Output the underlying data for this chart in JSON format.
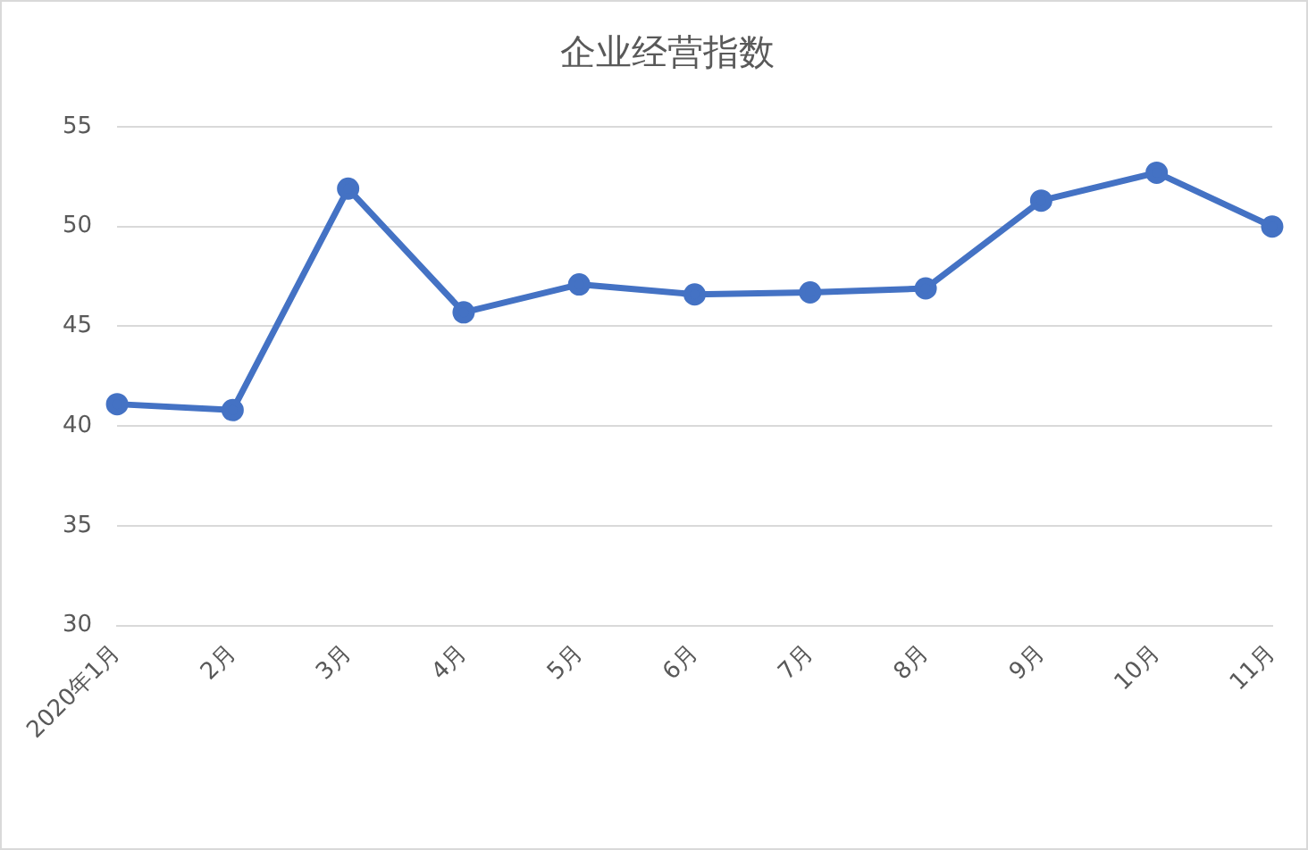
{
  "chart_data": {
    "type": "line",
    "title": "企业经营指数",
    "categories": [
      "2020年1月",
      "2月",
      "3月",
      "4月",
      "5月",
      "6月",
      "7月",
      "8月",
      "9月",
      "10月",
      "11月"
    ],
    "series": [
      {
        "color": "#4472c4",
        "values": [
          41.1,
          40.8,
          51.9,
          45.7,
          47.1,
          46.6,
          46.7,
          46.9,
          51.3,
          52.7,
          50.0
        ]
      }
    ],
    "ylim": [
      30,
      55
    ],
    "yticks": [
      30,
      35,
      40,
      45,
      50,
      55
    ],
    "grid": "y",
    "legend": false,
    "marker": "circle",
    "line_style": "solid"
  }
}
